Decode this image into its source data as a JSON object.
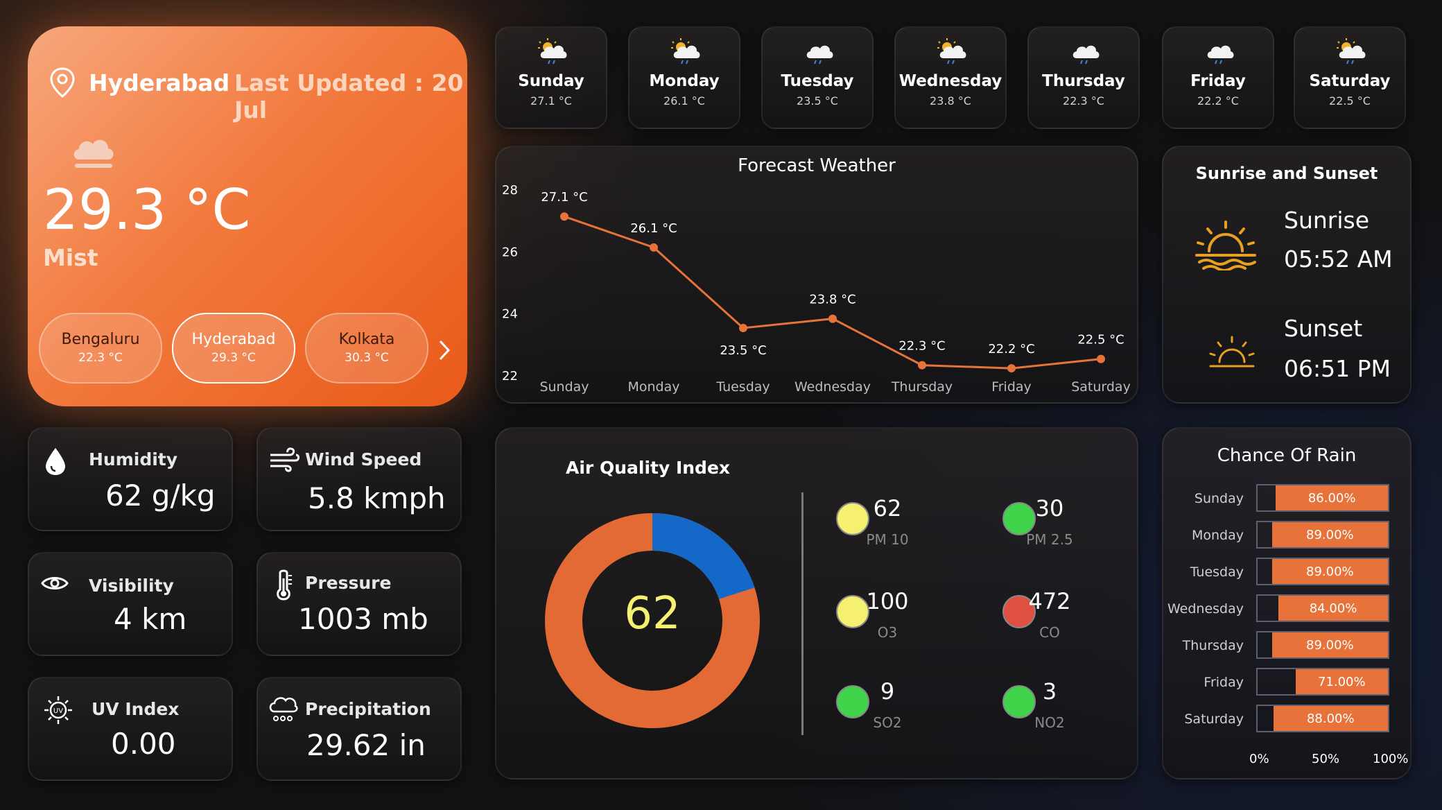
{
  "location": {
    "city": "Hyderabad",
    "last_updated": "Last Updated : 20 Jul",
    "temperature": "29.3 °C",
    "condition": "Mist"
  },
  "cities": [
    {
      "name": "Bengaluru",
      "temp": "22.3 °C"
    },
    {
      "name": "Hyderabad",
      "temp": "29.3 °C"
    },
    {
      "name": "Kolkata",
      "temp": "30.3 °C"
    }
  ],
  "days": [
    {
      "name": "Sunday",
      "temp": "27.1 °C",
      "icon": "sun-cloud-rain-icon"
    },
    {
      "name": "Monday",
      "temp": "26.1 °C",
      "icon": "sun-cloud-rain-icon"
    },
    {
      "name": "Tuesday",
      "temp": "23.5 °C",
      "icon": "cloud-rain-icon"
    },
    {
      "name": "Wednesday",
      "temp": "23.8 °C",
      "icon": "sun-cloud-rain-icon"
    },
    {
      "name": "Thursday",
      "temp": "22.3 °C",
      "icon": "cloud-rain-icon"
    },
    {
      "name": "Friday",
      "temp": "22.2 °C",
      "icon": "cloud-rain-icon"
    },
    {
      "name": "Saturday",
      "temp": "22.5 °C",
      "icon": "sun-cloud-rain-icon"
    }
  ],
  "metrics": {
    "humidity": {
      "label": "Humidity",
      "value": "62 g/kg"
    },
    "wind": {
      "label": "Wind Speed",
      "value": "5.8 kmph"
    },
    "visibility": {
      "label": "Visibility",
      "value": "4 km"
    },
    "pressure": {
      "label": "Pressure",
      "value": "1003 mb"
    },
    "uv": {
      "label": "UV Index",
      "value": "0.00"
    },
    "precip": {
      "label": "Precipitation",
      "value": "29.62 in"
    }
  },
  "forecast": {
    "title": "Forecast Weather",
    "y_ticks": [
      "28",
      "26",
      "24",
      "22"
    ],
    "ylim": [
      22,
      28
    ],
    "points": [
      {
        "x": "Sunday",
        "y": 27.1,
        "label": "27.1 °C"
      },
      {
        "x": "Monday",
        "y": 26.1,
        "label": "26.1 °C"
      },
      {
        "x": "Tuesday",
        "y": 23.5,
        "label": "23.5 °C"
      },
      {
        "x": "Wednesday",
        "y": 23.8,
        "label": "23.8 °C"
      },
      {
        "x": "Thursday",
        "y": 22.3,
        "label": "22.3 °C"
      },
      {
        "x": "Friday",
        "y": 22.2,
        "label": "22.2 °C"
      },
      {
        "x": "Saturday",
        "y": 22.5,
        "label": "22.5 °C"
      }
    ]
  },
  "sun": {
    "title": "Sunrise and Sunset",
    "sunrise_label": "Sunrise",
    "sunrise_time": "05:52 AM",
    "sunset_label": "Sunset",
    "sunset_time": "06:51 PM"
  },
  "aqi": {
    "title": "Air Quality Index",
    "value": "62",
    "gauge_fraction": 0.2,
    "pollutants": [
      {
        "value": "62",
        "name": "PM 10",
        "color": "#f5f070"
      },
      {
        "value": "30",
        "name": "PM 2.5",
        "color": "#3fd44a"
      },
      {
        "value": "100",
        "name": "O3",
        "color": "#f5f070"
      },
      {
        "value": "472",
        "name": "CO",
        "color": "#e05040"
      },
      {
        "value": "9",
        "name": "SO2",
        "color": "#3fd44a"
      },
      {
        "value": "3",
        "name": "NO2",
        "color": "#3fd44a"
      }
    ]
  },
  "chart_data": {
    "type": "line",
    "title": "Forecast Weather",
    "categories": [
      "Sunday",
      "Monday",
      "Tuesday",
      "Wednesday",
      "Thursday",
      "Friday",
      "Saturday"
    ],
    "values": [
      27.1,
      26.1,
      23.5,
      23.8,
      22.3,
      22.2,
      22.5
    ],
    "ylim": [
      22,
      28
    ]
  },
  "rain": {
    "title": "Chance Of Rain",
    "items": [
      {
        "day": "Sunday",
        "value": 86,
        "label": "86.00%"
      },
      {
        "day": "Monday",
        "value": 89,
        "label": "89.00%"
      },
      {
        "day": "Tuesday",
        "value": 89,
        "label": "89.00%"
      },
      {
        "day": "Wednesday",
        "value": 84,
        "label": "84.00%"
      },
      {
        "day": "Thursday",
        "value": 89,
        "label": "89.00%"
      },
      {
        "day": "Friday",
        "value": 71,
        "label": "71.00%"
      },
      {
        "day": "Saturday",
        "value": 88,
        "label": "88.00%"
      }
    ],
    "axis": [
      "0%",
      "50%",
      "100%"
    ]
  },
  "colors": {
    "accent": "#e7733b",
    "gauge_blue": "#1468c8",
    "aqi_value": "#f5f070"
  }
}
